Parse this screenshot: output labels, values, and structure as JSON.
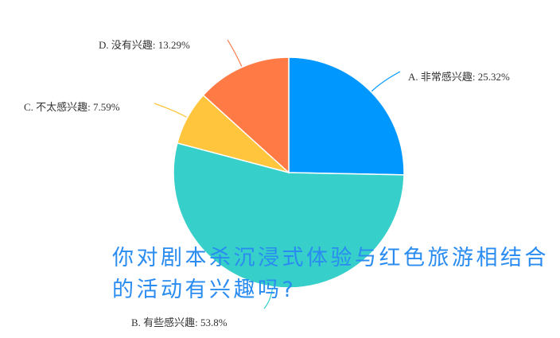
{
  "chart_data": {
    "type": "pie",
    "title": "",
    "slices": [
      {
        "label": "A. 非常感兴趣: 25.32%",
        "name": "A. 非常感兴趣",
        "value": 25.32,
        "color": "#0098FF"
      },
      {
        "label": "B. 有些感兴趣: 53.8%",
        "name": "B. 有些感兴趣",
        "value": 53.8,
        "color": "#36CFC9"
      },
      {
        "label": "C. 不太感兴趣: 7.59%",
        "name": "C. 不太感兴趣",
        "value": 7.59,
        "color": "#FFC53D"
      },
      {
        "label": "D. 没有兴趣: 13.29%",
        "name": "D. 没有兴趣",
        "value": 13.29,
        "color": "#FF7A45"
      }
    ]
  },
  "caption": {
    "text": "你对剧本杀沉浸式体验与红色旅游相结合的活动有兴趣吗?",
    "color": "#2A8CF0"
  }
}
